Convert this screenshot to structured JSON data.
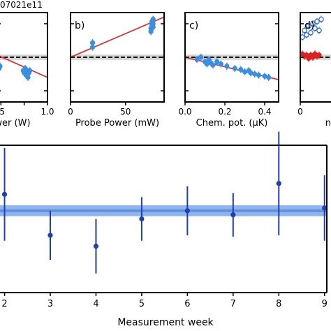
{
  "header_fragment": "07021e11",
  "chart_data": [
    {
      "panel_id": "a",
      "type": "scatter",
      "tag": "",
      "xlabel": "ower (W)",
      "xticks": [
        0.5,
        0.75,
        1.0
      ],
      "xtick_labels": [
        ".5",
        "",
        "1.0"
      ],
      "xlim": [
        0.46,
        1.0
      ],
      "ylim": [
        -2.0,
        2.0
      ],
      "reference_y": 0.0,
      "band": [
        -0.12,
        0.12
      ],
      "fit": {
        "x": [
          0.46,
          1.0
        ],
        "y": [
          0.1,
          -0.9
        ]
      },
      "points": {
        "x": [
          0.47,
          0.48,
          0.49,
          0.74,
          0.75,
          0.76,
          0.77,
          0.78,
          0.79,
          0.8,
          0.81
        ],
        "y": [
          -0.3,
          -0.5,
          -0.4,
          -0.6,
          -0.7,
          -0.5,
          -0.8,
          -0.6,
          -0.9,
          -0.7,
          -0.6
        ]
      }
    },
    {
      "panel_id": "b",
      "type": "scatter",
      "tag": "b)",
      "xlabel": "Probe Power (mW)",
      "xticks": [
        0,
        50
      ],
      "xtick_labels": [
        "0",
        "50"
      ],
      "xlim": [
        0,
        85
      ],
      "ylim": [
        -2.0,
        2.0
      ],
      "reference_y": 0.0,
      "band": [
        -0.12,
        0.12
      ],
      "fit": {
        "x": [
          0,
          85
        ],
        "y": [
          0.0,
          1.8
        ]
      },
      "points": {
        "x": [
          20,
          20,
          73,
          73,
          74,
          74,
          74,
          75,
          75,
          75
        ],
        "y": [
          0.45,
          0.65,
          1.15,
          1.3,
          1.45,
          1.55,
          1.6,
          1.7,
          1.35,
          1.5
        ]
      }
    },
    {
      "panel_id": "c",
      "type": "scatter",
      "tag": "c)",
      "xlabel": "Chem. pot. (μK)",
      "xticks": [
        0.0,
        0.2,
        0.4
      ],
      "xtick_labels": [
        "0.0",
        "0.2",
        "0.4"
      ],
      "xlim": [
        0.0,
        0.47
      ],
      "ylim": [
        -2.0,
        2.0
      ],
      "reference_y": 0.0,
      "band": [
        -0.12,
        0.12
      ],
      "fit": {
        "x": [
          0.0,
          0.47
        ],
        "y": [
          0.0,
          -1.0
        ]
      },
      "points": {
        "x": [
          0.06,
          0.08,
          0.1,
          0.11,
          0.12,
          0.13,
          0.14,
          0.16,
          0.18,
          0.21,
          0.25,
          0.28,
          0.3,
          0.32,
          0.33,
          0.35,
          0.37,
          0.4,
          0.42
        ],
        "y": [
          -0.1,
          0.0,
          -0.2,
          -0.3,
          -0.1,
          -0.25,
          -0.35,
          -0.2,
          -0.3,
          -0.4,
          -0.5,
          -0.55,
          -0.65,
          -0.6,
          -0.7,
          -0.75,
          -0.8,
          -0.85,
          -0.9
        ]
      }
    },
    {
      "panel_id": "d",
      "type": "scatter",
      "tag": "d)",
      "xlabel": "n",
      "xticks": [
        0
      ],
      "xtick_labels": [
        "0"
      ],
      "xlim": [
        0,
        1
      ],
      "ylim": [
        -2.0,
        2.0
      ],
      "reference_y": 0.0,
      "band": [
        -0.12,
        0.12
      ],
      "series": [
        {
          "marker": "open",
          "color": "#2b6fcf",
          "x": [
            0.05,
            0.1,
            0.15,
            0.2,
            0.25,
            0.3,
            0.35,
            0.4,
            0.45,
            0.5
          ],
          "y": [
            0.9,
            1.2,
            1.0,
            1.4,
            1.1,
            1.5,
            1.3,
            1.6,
            1.2,
            1.7
          ]
        },
        {
          "marker": "filled",
          "color": "#e02020",
          "x": [
            0.05,
            0.1,
            0.15,
            0.2,
            0.25,
            0.3,
            0.35,
            0.4,
            0.45
          ],
          "y": [
            0.15,
            0.05,
            0.1,
            -0.05,
            0.1,
            0.0,
            0.15,
            0.05,
            0.1
          ]
        }
      ]
    },
    {
      "panel_id": "weekly",
      "type": "scatter",
      "xlabel": "Measurement week",
      "categories": [
        2,
        3,
        4,
        5,
        6,
        7,
        8,
        9
      ],
      "xlim": [
        1.9,
        9.05
      ],
      "ylim": [
        -3.0,
        2.4
      ],
      "values": [
        0.6,
        -0.9,
        -1.3,
        -0.3,
        0.0,
        -0.15,
        1.0,
        0.1
      ],
      "errors": [
        1.7,
        0.9,
        1.0,
        0.8,
        0.9,
        0.8,
        1.9,
        1.2
      ],
      "band_outer": [
        -0.2,
        0.2
      ],
      "band_inner": [
        -0.05,
        0.05
      ],
      "color": "#1f3fb0",
      "band_color": "#8fb5ec"
    }
  ]
}
